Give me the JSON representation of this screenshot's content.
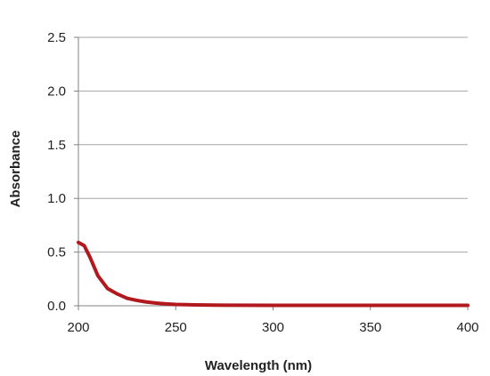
{
  "chart_data": {
    "type": "line",
    "title": "",
    "xlabel": "Wavelength (nm)",
    "ylabel": "Absorbance",
    "xlim": [
      200,
      400
    ],
    "ylim": [
      0,
      2.5
    ],
    "x_ticks": [
      "200",
      "250",
      "300",
      "350",
      "400"
    ],
    "y_ticks": [
      "0.0",
      "0.5",
      "1.0",
      "1.5",
      "2.0",
      "2.5"
    ],
    "grid": "horizontal",
    "legend": "none",
    "series": [
      {
        "color": "#b2191d",
        "x": [
          200,
          203,
          206,
          210,
          215,
          220,
          225,
          230,
          235,
          240,
          245,
          250,
          260,
          270,
          280,
          300,
          320,
          350,
          380,
          400
        ],
        "y": [
          0.59,
          0.56,
          0.45,
          0.28,
          0.16,
          0.11,
          0.07,
          0.05,
          0.035,
          0.025,
          0.018,
          0.012,
          0.008,
          0.006,
          0.005,
          0.004,
          0.004,
          0.004,
          0.004,
          0.004
        ]
      }
    ]
  }
}
